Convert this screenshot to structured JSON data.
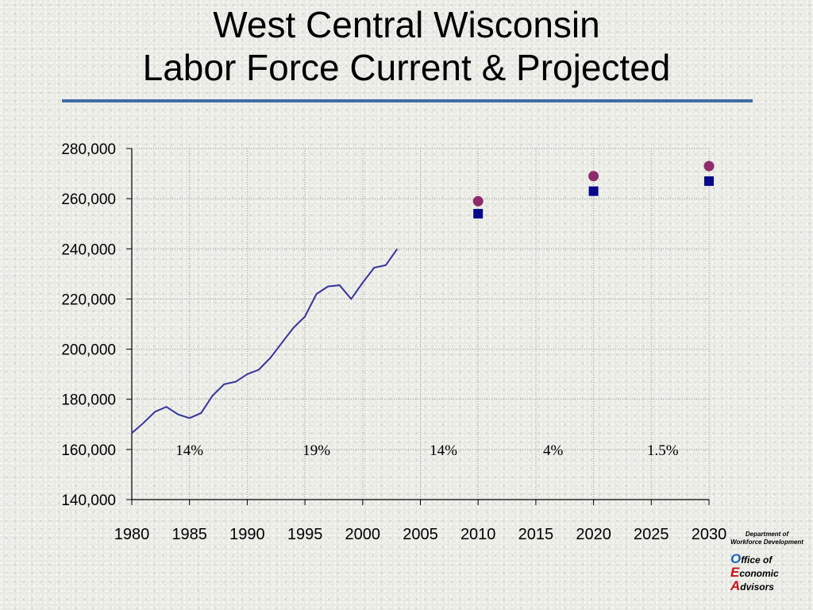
{
  "title_line1": "West Central Wisconsin",
  "title_line2": "Labor Force Current & Projected",
  "logo": {
    "dept_line1": "Department of",
    "dept_line2": "Workforce Development",
    "line1_cap": "O",
    "line1_rest": "ffice of",
    "line2_cap": "E",
    "line2_rest": "conomic",
    "line3_cap": "A",
    "line3_rest": "dvisors"
  },
  "colors": {
    "line": "#34349a",
    "square": "#08088a",
    "circle": "#8c2d6a",
    "rule": "#3e6da6"
  },
  "chart_data": {
    "type": "line",
    "title": "",
    "xlabel": "",
    "ylabel": "",
    "xlim": [
      1980,
      2030
    ],
    "ylim": [
      140000,
      280000
    ],
    "x_ticks": [
      1980,
      1985,
      1990,
      1995,
      2000,
      2005,
      2010,
      2015,
      2020,
      2025,
      2030
    ],
    "y_ticks": [
      140000,
      160000,
      180000,
      200000,
      220000,
      240000,
      260000,
      280000
    ],
    "x_tick_labels": [
      "1980",
      "1985",
      "1990",
      "1995",
      "2000",
      "2005",
      "2010",
      "2015",
      "2020",
      "2025",
      "2030"
    ],
    "y_tick_labels": [
      "140,000",
      "160,000",
      "180,000",
      "200,000",
      "220,000",
      "240,000",
      "260,000",
      "280,000"
    ],
    "grid": true,
    "legend": "none",
    "series": [
      {
        "marker": "line",
        "x": [
          1980,
          1981,
          1982,
          1983,
          1984,
          1985,
          1986,
          1987,
          1988,
          1989,
          1990,
          1991,
          1992,
          1993,
          1994,
          1995,
          1996,
          1997,
          1998,
          1999,
          2000,
          2001,
          2002,
          2003
        ],
        "y": [
          166500,
          170500,
          175000,
          177000,
          174000,
          172500,
          174500,
          181500,
          186000,
          187000,
          190000,
          191800,
          196500,
          202500,
          208500,
          213000,
          222000,
          225000,
          225500,
          220000,
          226500,
          232500,
          233500,
          240000
        ]
      },
      {
        "marker": "square",
        "x": [
          2010,
          2020,
          2030
        ],
        "y": [
          254000,
          263000,
          267000
        ]
      },
      {
        "marker": "circle",
        "x": [
          2010,
          2020,
          2030
        ],
        "y": [
          259000,
          269000,
          273000
        ]
      }
    ],
    "annotations": [
      {
        "text": "14%",
        "x": 1985,
        "y": 160000
      },
      {
        "text": "19%",
        "x": 1996,
        "y": 160000
      },
      {
        "text": "14%",
        "x": 2007,
        "y": 160000
      },
      {
        "text": "4%",
        "x": 2016.5,
        "y": 160000
      },
      {
        "text": "1.5%",
        "x": 2026,
        "y": 160000
      }
    ]
  }
}
